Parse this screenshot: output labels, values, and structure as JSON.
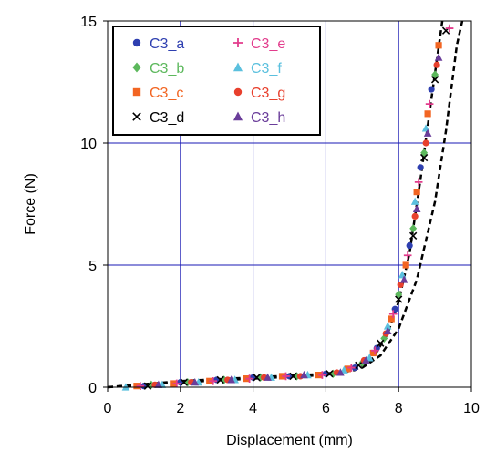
{
  "chart_data": {
    "type": "scatter",
    "title": "",
    "xlabel": "Displacement (mm)",
    "ylabel": "Force (N)",
    "xlim": [
      0,
      10
    ],
    "ylim": [
      0,
      15
    ],
    "xticks": [
      "0",
      "2",
      "4",
      "6",
      "8",
      "10"
    ],
    "yticks": [
      "0",
      "5",
      "10",
      "15"
    ],
    "grid": true,
    "grid_color": "#1a1ab4",
    "legend_position": "top-left",
    "series": [
      {
        "name": "C3_a",
        "marker": "circle",
        "color": "#2e3fb0",
        "points": [
          [
            1.0,
            0.05
          ],
          [
            2.0,
            0.2
          ],
          [
            3.0,
            0.3
          ],
          [
            4.0,
            0.4
          ],
          [
            5.0,
            0.45
          ],
          [
            6.0,
            0.55
          ],
          [
            6.8,
            0.8
          ],
          [
            7.4,
            1.6
          ],
          [
            7.9,
            3.2
          ],
          [
            8.3,
            5.8
          ],
          [
            8.6,
            9.0
          ],
          [
            8.9,
            12.2
          ]
        ]
      },
      {
        "name": "C3_b",
        "marker": "diamond",
        "color": "#5cb85c",
        "points": [
          [
            1.2,
            0.1
          ],
          [
            2.2,
            0.2
          ],
          [
            3.2,
            0.3
          ],
          [
            4.2,
            0.4
          ],
          [
            5.2,
            0.45
          ],
          [
            6.2,
            0.55
          ],
          [
            7.0,
            1.0
          ],
          [
            7.6,
            2.0
          ],
          [
            8.0,
            3.8
          ],
          [
            8.4,
            6.5
          ],
          [
            8.7,
            9.6
          ],
          [
            9.0,
            12.8
          ]
        ]
      },
      {
        "name": "C3_c",
        "marker": "square",
        "color": "#f26522",
        "points": [
          [
            0.8,
            0.05
          ],
          [
            1.8,
            0.15
          ],
          [
            2.8,
            0.25
          ],
          [
            3.8,
            0.35
          ],
          [
            4.8,
            0.45
          ],
          [
            5.8,
            0.5
          ],
          [
            6.6,
            0.75
          ],
          [
            7.3,
            1.4
          ],
          [
            7.8,
            2.8
          ],
          [
            8.2,
            5.0
          ],
          [
            8.5,
            8.0
          ],
          [
            8.8,
            11.2
          ],
          [
            9.1,
            14.0
          ]
        ]
      },
      {
        "name": "C3_d",
        "marker": "x",
        "color": "#000000",
        "points": [
          [
            1.1,
            0.05
          ],
          [
            2.1,
            0.2
          ],
          [
            3.1,
            0.3
          ],
          [
            4.1,
            0.4
          ],
          [
            5.1,
            0.45
          ],
          [
            6.1,
            0.55
          ],
          [
            6.9,
            0.9
          ],
          [
            7.5,
            1.8
          ],
          [
            8.0,
            3.6
          ],
          [
            8.4,
            6.2
          ],
          [
            8.7,
            9.4
          ],
          [
            9.0,
            12.6
          ],
          [
            9.3,
            14.6
          ]
        ]
      },
      {
        "name": "C3_e",
        "marker": "plus",
        "color": "#e23c8c",
        "points": [
          [
            0.9,
            0.05
          ],
          [
            1.9,
            0.15
          ],
          [
            2.9,
            0.25
          ],
          [
            3.9,
            0.35
          ],
          [
            4.9,
            0.45
          ],
          [
            5.9,
            0.5
          ],
          [
            6.7,
            0.8
          ],
          [
            7.35,
            1.5
          ],
          [
            7.85,
            3.0
          ],
          [
            8.25,
            5.4
          ],
          [
            8.55,
            8.4
          ],
          [
            8.85,
            11.6
          ],
          [
            9.4,
            14.7
          ]
        ]
      },
      {
        "name": "C3_f",
        "marker": "triangle",
        "color": "#5bc0de",
        "points": [
          [
            0.5,
            0.0
          ],
          [
            1.5,
            0.1
          ],
          [
            2.5,
            0.2
          ],
          [
            3.5,
            0.3
          ],
          [
            4.5,
            0.4
          ],
          [
            5.5,
            0.5
          ],
          [
            6.5,
            0.7
          ],
          [
            7.2,
            1.2
          ],
          [
            7.7,
            2.5
          ],
          [
            8.1,
            4.6
          ],
          [
            8.45,
            7.6
          ],
          [
            8.75,
            10.6
          ]
        ]
      },
      {
        "name": "C3_g",
        "marker": "circle",
        "color": "#e8402d",
        "points": [
          [
            1.3,
            0.1
          ],
          [
            2.3,
            0.2
          ],
          [
            3.3,
            0.3
          ],
          [
            4.3,
            0.4
          ],
          [
            5.3,
            0.45
          ],
          [
            6.3,
            0.6
          ],
          [
            7.05,
            1.1
          ],
          [
            7.65,
            2.2
          ],
          [
            8.05,
            4.2
          ],
          [
            8.45,
            7.0
          ],
          [
            8.75,
            10.0
          ],
          [
            9.05,
            13.2
          ]
        ]
      },
      {
        "name": "C3_h",
        "marker": "triangle",
        "color": "#6a3d9a",
        "points": [
          [
            1.4,
            0.1
          ],
          [
            2.4,
            0.2
          ],
          [
            3.4,
            0.3
          ],
          [
            4.4,
            0.4
          ],
          [
            5.4,
            0.5
          ],
          [
            6.4,
            0.6
          ],
          [
            7.1,
            1.1
          ],
          [
            7.7,
            2.3
          ],
          [
            8.15,
            4.4
          ],
          [
            8.5,
            7.3
          ],
          [
            8.8,
            10.4
          ],
          [
            9.1,
            13.5
          ]
        ]
      }
    ],
    "bounds": [
      {
        "style": "dashed",
        "color": "#000000",
        "points": [
          [
            0,
            0
          ],
          [
            2,
            0.2
          ],
          [
            4,
            0.35
          ],
          [
            6,
            0.5
          ],
          [
            6.8,
            0.7
          ],
          [
            7.3,
            1.2
          ],
          [
            7.7,
            2.2
          ],
          [
            8.0,
            3.5
          ],
          [
            8.3,
            5.5
          ],
          [
            8.6,
            8.5
          ],
          [
            8.9,
            11.8
          ],
          [
            9.2,
            15.0
          ]
        ]
      },
      {
        "style": "dashed",
        "color": "#000000",
        "points": [
          [
            0,
            0
          ],
          [
            2,
            0.25
          ],
          [
            4,
            0.4
          ],
          [
            6,
            0.55
          ],
          [
            7.0,
            0.8
          ],
          [
            7.5,
            1.3
          ],
          [
            8.0,
            2.4
          ],
          [
            8.5,
            4.4
          ],
          [
            9.0,
            7.6
          ],
          [
            9.3,
            10.5
          ],
          [
            9.6,
            14.0
          ],
          [
            9.75,
            15.0
          ]
        ]
      }
    ]
  }
}
